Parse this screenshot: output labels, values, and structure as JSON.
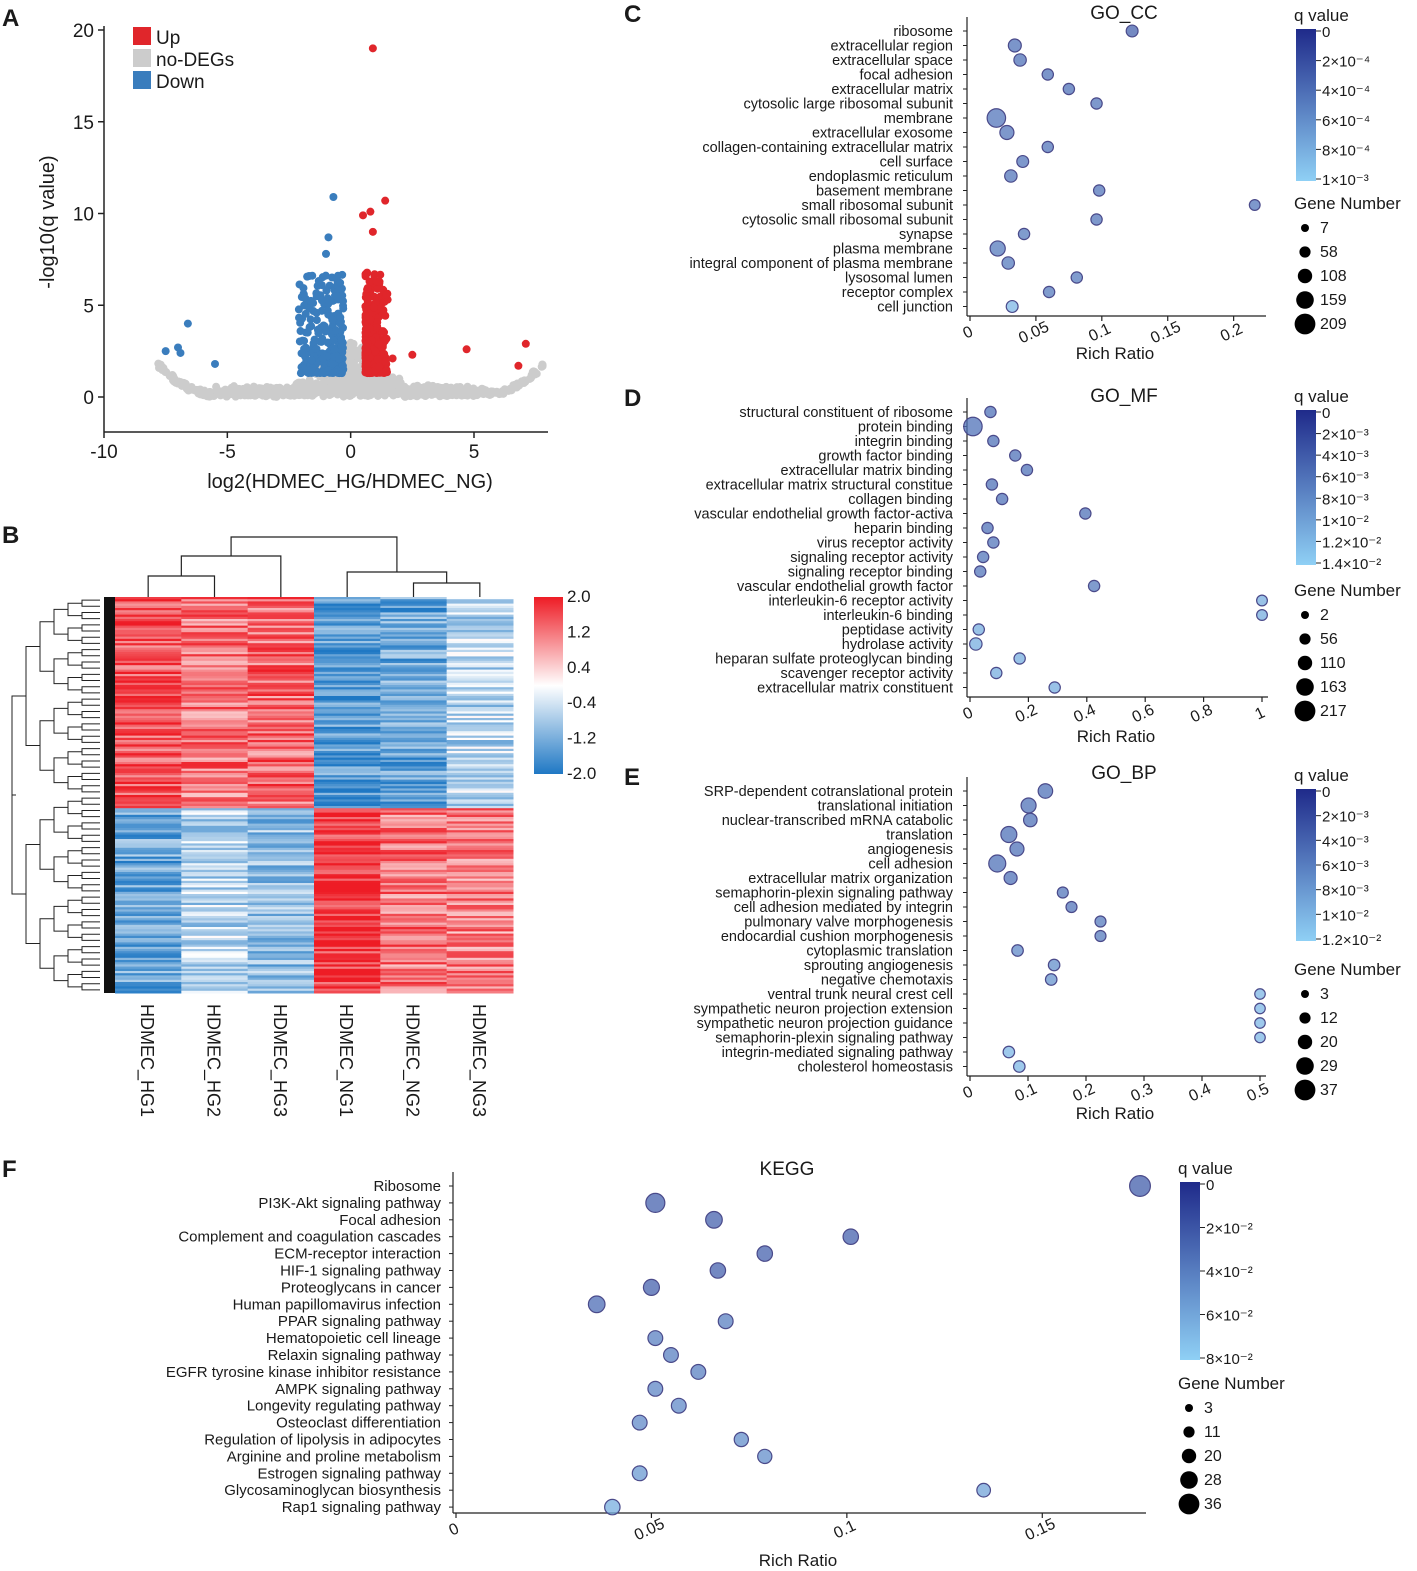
{
  "panels": {
    "A": "A",
    "B": "B",
    "C": "C",
    "D": "D",
    "E": "E",
    "F": "F"
  },
  "colors": {
    "up": "#e0262b",
    "nodeg": "#cccccc",
    "down": "#3a7dbd",
    "bubble_dark": "#1f2a8a",
    "bubble_light": "#8fd0f5",
    "heat_high": "#ee1c25",
    "heat_low": "#1f78c4"
  },
  "chart_data": [
    {
      "id": "volcano",
      "type": "scatter",
      "title": "",
      "xlabel": "log2(HDMEC_HG/HDMEC_NG)",
      "ylabel": "-log10(q value)",
      "xlim": [
        -10,
        8
      ],
      "ylim": [
        -1,
        20
      ],
      "xticks": [
        "-10",
        "-5",
        "0",
        "5"
      ],
      "yticks": [
        "0",
        "5",
        "10",
        "15",
        "20"
      ],
      "legend": [
        {
          "name": "Up",
          "color": "#e0262b"
        },
        {
          "name": "no-DEGs",
          "color": "#cccccc"
        },
        {
          "name": "Down",
          "color": "#3a7dbd"
        }
      ],
      "points_up": [
        [
          0.9,
          19.0
        ],
        [
          1.4,
          10.7
        ],
        [
          0.8,
          10.1
        ],
        [
          0.5,
          9.9
        ],
        [
          0.9,
          9.0
        ],
        [
          1.7,
          2.1
        ],
        [
          2.5,
          2.3
        ],
        [
          4.7,
          2.6
        ],
        [
          7.1,
          2.9
        ],
        [
          6.8,
          1.7
        ]
      ],
      "points_down": [
        [
          -0.7,
          10.9
        ],
        [
          -0.9,
          8.7
        ],
        [
          -1.0,
          7.8
        ],
        [
          -6.6,
          4.0
        ],
        [
          -7.0,
          2.7
        ],
        [
          -7.5,
          2.5
        ],
        [
          -5.5,
          1.8
        ],
        [
          -6.9,
          2.4
        ]
      ]
    },
    {
      "id": "heatmap",
      "type": "heatmap",
      "columns": [
        "HDMEC_HG1",
        "HDMEC_HG2",
        "HDMEC_HG3",
        "HDMEC_NG1",
        "HDMEC_NG2",
        "HDMEC_NG3"
      ],
      "column_groups": [
        {
          "rows": "upper",
          "values": [
            1.5,
            1.2,
            1.3,
            -1.5,
            -1.3,
            -0.6
          ]
        },
        {
          "rows": "lower",
          "values": [
            -1.3,
            -0.6,
            -1.0,
            1.8,
            1.2,
            1.1
          ]
        }
      ],
      "scale_ticks": [
        "2.0",
        "1.2",
        "0.4",
        "-0.4",
        "-1.2",
        "-2.0"
      ],
      "range": [
        -2.0,
        2.0
      ]
    },
    {
      "id": "go_cc",
      "type": "scatter",
      "title": "GO_CC",
      "xlabel": "Rich Ratio",
      "xlim": [
        0,
        0.22
      ],
      "xticks": [
        0,
        0.05,
        0.1,
        0.15,
        0.2
      ],
      "xticklabels": [
        "0",
        "0.05",
        "0.1",
        "0.15",
        "0.2"
      ],
      "qlegend_title": "q value",
      "qlegend_ticks": [
        "0",
        "2×10⁻⁴",
        "4×10⁻⁴",
        "6×10⁻⁴",
        "8×10⁻⁴",
        "1×10⁻³"
      ],
      "size_title": "Gene Number",
      "size_ticks": [
        "7",
        "58",
        "108",
        "159",
        "209"
      ],
      "terms": [
        "ribosome",
        "extracellular region",
        "extracellular space",
        "focal adhesion",
        "extracellular matrix",
        "cytosolic large ribosomal subunit",
        "membrane",
        "extracellular exosome",
        "collagen-containing extracellular matrix",
        "cell surface",
        "endoplasmic reticulum",
        "basement membrane",
        "small ribosomal subunit",
        "cytosolic small ribosomal subunit",
        "synapse",
        "plasma membrane",
        "integral component of plasma membrane",
        "lysosomal lumen",
        "receptor complex",
        "cell junction"
      ],
      "x": [
        0.123,
        0.034,
        0.038,
        0.059,
        0.075,
        0.096,
        0.02,
        0.028,
        0.059,
        0.04,
        0.031,
        0.098,
        0.216,
        0.096,
        0.041,
        0.021,
        0.029,
        0.081,
        0.06,
        0.032
      ],
      "q": [
        0.15,
        0.3,
        0.3,
        0.3,
        0.3,
        0.35,
        0.35,
        0.35,
        0.35,
        0.35,
        0.35,
        0.35,
        0.35,
        0.35,
        0.4,
        0.4,
        0.4,
        0.4,
        0.4,
        1.0
      ],
      "size": [
        0.35,
        0.45,
        0.4,
        0.3,
        0.3,
        0.3,
        0.95,
        0.55,
        0.3,
        0.35,
        0.4,
        0.3,
        0.25,
        0.3,
        0.3,
        0.65,
        0.4,
        0.3,
        0.3,
        0.35
      ]
    },
    {
      "id": "go_mf",
      "type": "scatter",
      "title": "GO_MF",
      "xlabel": "Rich Ratio",
      "xlim": [
        0,
        1
      ],
      "xticks": [
        0,
        0.2,
        0.4,
        0.6,
        0.8,
        1
      ],
      "xticklabels": [
        "0",
        "0.2",
        "0.4",
        "0.6",
        "0.8",
        "1"
      ],
      "qlegend_title": "q value",
      "qlegend_ticks": [
        "0",
        "2×10⁻³",
        "4×10⁻³",
        "6×10⁻³",
        "8×10⁻³",
        "1×10⁻²",
        "1.2×10⁻²",
        "1.4×10⁻²"
      ],
      "size_title": "Gene Number",
      "size_ticks": [
        "2",
        "56",
        "110",
        "163",
        "217"
      ],
      "terms": [
        "structural constituent of ribosome",
        "protein binding",
        "integrin binding",
        "growth factor binding",
        "extracellular matrix binding",
        "extracellular matrix structural constitue",
        "collagen binding",
        "vascular endothelial growth factor-activa",
        "heparin binding",
        "virus receptor activity",
        "signaling receptor activity",
        "signaling receptor binding",
        "vascular endothelial growth factor",
        "interleukin-6 receptor activity",
        "interleukin-6 binding",
        "peptidase activity",
        "hydrolase activity",
        "heparan sulfate proteoglycan binding",
        "scavenger receptor activity",
        "extracellular matrix constituent"
      ],
      "x": [
        0.07,
        0.01,
        0.08,
        0.155,
        0.195,
        0.075,
        0.11,
        0.395,
        0.06,
        0.08,
        0.045,
        0.035,
        0.425,
        1.0,
        1.0,
        0.03,
        0.02,
        0.17,
        0.09,
        0.29
      ],
      "q": [
        0.3,
        0.3,
        0.3,
        0.3,
        0.3,
        0.3,
        0.3,
        0.3,
        0.3,
        0.35,
        0.35,
        0.35,
        0.4,
        0.9,
        0.9,
        0.9,
        0.9,
        0.9,
        0.9,
        0.9
      ],
      "size": [
        0.3,
        0.95,
        0.3,
        0.3,
        0.3,
        0.3,
        0.3,
        0.3,
        0.3,
        0.3,
        0.3,
        0.3,
        0.3,
        0.25,
        0.25,
        0.3,
        0.4,
        0.3,
        0.3,
        0.3
      ]
    },
    {
      "id": "go_bp",
      "type": "scatter",
      "title": "GO_BP",
      "xlabel": "Rich Ratio",
      "xlim": [
        0,
        0.5
      ],
      "xticks": [
        0,
        0.1,
        0.2,
        0.3,
        0.4,
        0.5
      ],
      "xticklabels": [
        "0",
        "0.1",
        "0.2",
        "0.3",
        "0.4",
        "0.5"
      ],
      "qlegend_title": "q value",
      "qlegend_ticks": [
        "0",
        "2×10⁻³",
        "4×10⁻³",
        "6×10⁻³",
        "8×10⁻³",
        "1×10⁻²",
        "1.2×10⁻²"
      ],
      "size_title": "Gene Number",
      "size_ticks": [
        "3",
        "12",
        "20",
        "29",
        "37"
      ],
      "terms": [
        "SRP-dependent cotranslational protein",
        "translational initiation",
        "nuclear-transcribed mRNA catabolic",
        "translation",
        "angiogenesis",
        "cell adhesion",
        "extracellular matrix organization",
        "semaphorin-plexin signaling pathway",
        "cell adhesion mediated by integrin",
        "pulmonary valve morphogenesis",
        "endocardial cushion morphogenesis",
        "cytoplasmic translation",
        "sprouting angiogenesis",
        "negative chemotaxis",
        "ventral trunk neural crest cell",
        "sympathetic neuron projection extension",
        "sympathetic neuron projection guidance",
        "semaphorin-plexin signaling pathway",
        "integrin-mediated signaling pathway",
        "cholesterol homeostasis"
      ],
      "x": [
        0.13,
        0.101,
        0.104,
        0.067,
        0.081,
        0.047,
        0.07,
        0.16,
        0.175,
        0.225,
        0.225,
        0.082,
        0.145,
        0.14,
        0.5,
        0.5,
        0.5,
        0.5,
        0.067,
        0.085
      ],
      "q": [
        0.3,
        0.3,
        0.3,
        0.3,
        0.3,
        0.3,
        0.3,
        0.35,
        0.35,
        0.4,
        0.4,
        0.55,
        0.6,
        0.65,
        1.0,
        1.0,
        1.0,
        1.0,
        1.0,
        1.0
      ],
      "size": [
        0.65,
        0.7,
        0.55,
        0.8,
        0.6,
        0.9,
        0.5,
        0.3,
        0.3,
        0.3,
        0.3,
        0.35,
        0.35,
        0.35,
        0.25,
        0.25,
        0.25,
        0.25,
        0.35,
        0.35
      ]
    },
    {
      "id": "kegg",
      "type": "scatter",
      "title": "KEGG",
      "xlabel": "Rich Ratio",
      "xlim": [
        0,
        0.175
      ],
      "xticks": [
        0,
        0.05,
        0.1,
        0.15
      ],
      "xticklabels": [
        "0",
        "0.05",
        "0.1",
        "0.15"
      ],
      "qlegend_title": "q value",
      "qlegend_ticks": [
        "0",
        "2×10⁻²",
        "4×10⁻²",
        "6×10⁻²",
        "8×10⁻²"
      ],
      "size_title": "Gene Number",
      "size_ticks": [
        "3",
        "11",
        "20",
        "28",
        "36"
      ],
      "terms": [
        "Ribosome",
        "PI3K-Akt signaling pathway",
        "Focal adhesion",
        "Complement and coagulation cascades",
        "ECM-receptor interaction",
        "HIF-1 signaling pathway",
        "Proteoglycans in cancer",
        "Human papillomavirus infection",
        "PPAR signaling pathway",
        "Hematopoietic cell lineage",
        "Relaxin signaling pathway",
        "EGFR tyrosine kinase inhibitor resistance",
        "AMPK signaling pathway",
        "Longevity regulating pathway",
        "Osteoclast differentiation",
        "Regulation of lipolysis in adipocytes",
        "Arginine and proline metabolism",
        "Estrogen signaling pathway",
        "Glycosaminoglycan biosynthesis",
        "Rap1 signaling pathway"
      ],
      "x": [
        0.175,
        0.051,
        0.066,
        0.101,
        0.079,
        0.067,
        0.05,
        0.036,
        0.069,
        0.051,
        0.055,
        0.062,
        0.051,
        0.057,
        0.047,
        0.073,
        0.079,
        0.047,
        0.135,
        0.04
      ],
      "q": [
        0.1,
        0.15,
        0.15,
        0.15,
        0.15,
        0.15,
        0.15,
        0.25,
        0.45,
        0.45,
        0.45,
        0.45,
        0.5,
        0.55,
        0.55,
        0.6,
        0.6,
        0.7,
        0.8,
        0.9
      ],
      "size": [
        0.9,
        0.75,
        0.55,
        0.45,
        0.45,
        0.45,
        0.5,
        0.55,
        0.4,
        0.4,
        0.4,
        0.4,
        0.4,
        0.4,
        0.4,
        0.35,
        0.35,
        0.4,
        0.3,
        0.45
      ]
    }
  ]
}
